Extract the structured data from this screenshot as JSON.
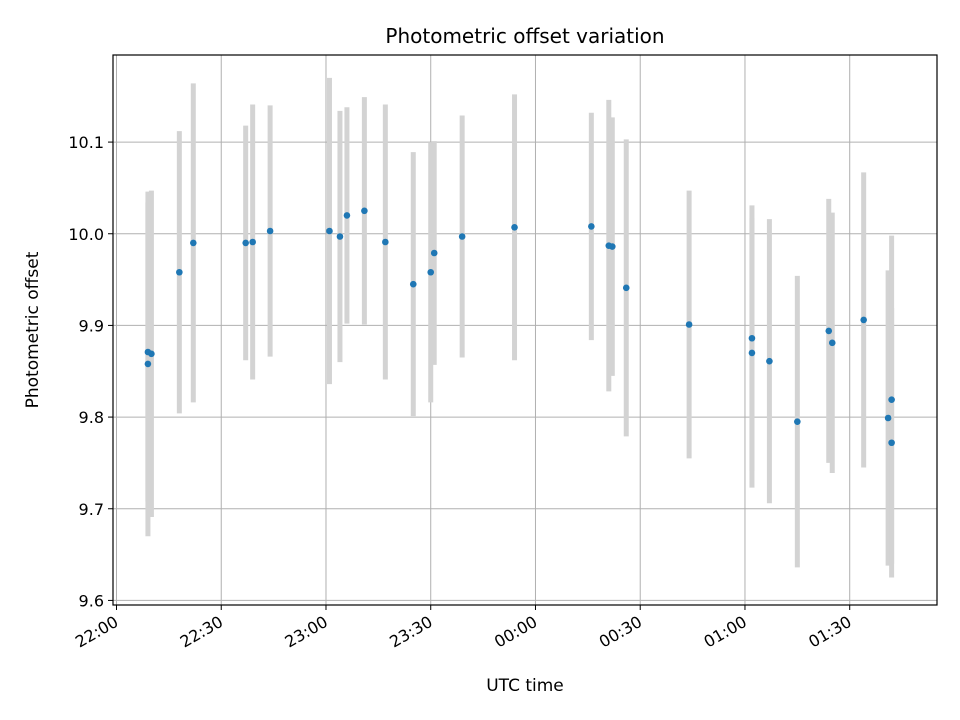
{
  "chart_data": {
    "type": "scatter",
    "title": "Photometric offset variation",
    "xlabel": "UTC time",
    "ylabel": "Photometric offset",
    "xlim": [
      "21:59",
      "01:55"
    ],
    "ylim": [
      9.595,
      10.195
    ],
    "grid": true,
    "x_ticks": [
      "22:00",
      "22:30",
      "23:00",
      "23:30",
      "00:00",
      "00:30",
      "01:00",
      "01:30"
    ],
    "y_ticks": [
      "9.6",
      "9.7",
      "9.8",
      "9.9",
      "10.0",
      "10.1"
    ],
    "y_tick_values": [
      9.6,
      9.7,
      9.8,
      9.9,
      10.0,
      10.1
    ],
    "point_color": "#1f77b4",
    "errorbar_color": "#d3d3d3",
    "points": [
      {
        "t": "22:09",
        "y": 9.871,
        "err": 0.163
      },
      {
        "t": "22:09",
        "y": 9.858,
        "err": 0.188
      },
      {
        "t": "22:10",
        "y": 9.869,
        "err": 0.178
      },
      {
        "t": "22:18",
        "y": 9.958,
        "err": 0.154
      },
      {
        "t": "22:22",
        "y": 9.99,
        "err": 0.174
      },
      {
        "t": "22:37",
        "y": 9.99,
        "err": 0.128
      },
      {
        "t": "22:39",
        "y": 9.991,
        "err": 0.15
      },
      {
        "t": "22:44",
        "y": 10.003,
        "err": 0.137
      },
      {
        "t": "23:01",
        "y": 10.003,
        "err": 0.167
      },
      {
        "t": "23:04",
        "y": 9.997,
        "err": 0.137
      },
      {
        "t": "23:06",
        "y": 10.02,
        "err": 0.118
      },
      {
        "t": "23:11",
        "y": 10.025,
        "err": 0.124
      },
      {
        "t": "23:17",
        "y": 9.991,
        "err": 0.15
      },
      {
        "t": "23:25",
        "y": 9.945,
        "err": 0.144
      },
      {
        "t": "23:30",
        "y": 9.958,
        "err": 0.142
      },
      {
        "t": "23:31",
        "y": 9.979,
        "err": 0.122
      },
      {
        "t": "23:39",
        "y": 9.997,
        "err": 0.132
      },
      {
        "t": "23:54",
        "y": 10.007,
        "err": 0.145
      },
      {
        "t": "00:16",
        "y": 10.008,
        "err": 0.124
      },
      {
        "t": "00:21",
        "y": 9.987,
        "err": 0.159
      },
      {
        "t": "00:22",
        "y": 9.986,
        "err": 0.141
      },
      {
        "t": "00:26",
        "y": 9.941,
        "err": 0.162
      },
      {
        "t": "00:44",
        "y": 9.901,
        "err": 0.146
      },
      {
        "t": "01:02",
        "y": 9.87,
        "err": 0.147
      },
      {
        "t": "01:02",
        "y": 9.886,
        "err": 0.145
      },
      {
        "t": "01:07",
        "y": 9.861,
        "err": 0.155
      },
      {
        "t": "01:15",
        "y": 9.795,
        "err": 0.159
      },
      {
        "t": "01:24",
        "y": 9.894,
        "err": 0.144
      },
      {
        "t": "01:25",
        "y": 9.881,
        "err": 0.142
      },
      {
        "t": "01:34",
        "y": 9.906,
        "err": 0.161
      },
      {
        "t": "01:41",
        "y": 9.799,
        "err": 0.161
      },
      {
        "t": "01:42",
        "y": 9.819,
        "err": 0.179
      },
      {
        "t": "01:42",
        "y": 9.772,
        "err": 0.147
      }
    ]
  }
}
